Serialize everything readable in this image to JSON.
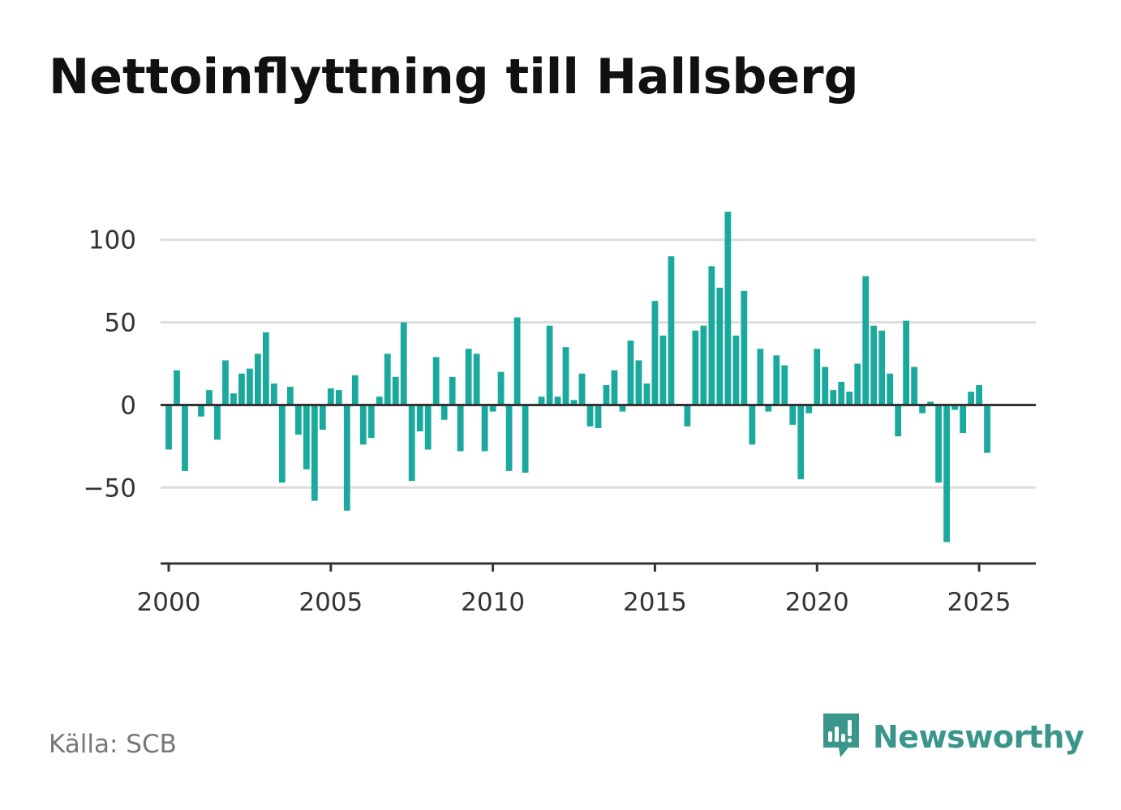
{
  "header": {
    "title": "Nettoinflyttning till Hallsberg"
  },
  "footer": {
    "source": "Källa: SCB",
    "brand": "Newsworthy",
    "brand_icon": "newsworthy-logo-icon"
  },
  "colors": {
    "bar": "#1aa99d",
    "grid": "#dddddd",
    "axis": "#333333",
    "brand": "#3a968a"
  },
  "chart_data": {
    "type": "bar",
    "title": "Nettoinflyttning till Hallsberg",
    "xlabel": "",
    "ylabel": "",
    "frequency": "quarterly",
    "x_start": 2000.0,
    "x_step": 0.25,
    "xlim": [
      1999.75,
      2026.75
    ],
    "ylim": [
      -96,
      120
    ],
    "yticks": [
      -50,
      0,
      50,
      100
    ],
    "ytick_labels": [
      "−50",
      "0",
      "50",
      "100"
    ],
    "xticks": [
      2000,
      2005,
      2010,
      2015,
      2020,
      2025
    ],
    "xtick_labels": [
      "2000",
      "2005",
      "2010",
      "2015",
      "2020",
      "2025"
    ],
    "grid": "horizontal",
    "values": [
      -27,
      21,
      -40,
      0,
      -7,
      9,
      -21,
      27,
      7,
      19,
      22,
      31,
      44,
      13,
      -47,
      11,
      -18,
      -39,
      -58,
      -15,
      10,
      9,
      -64,
      18,
      -24,
      -20,
      5,
      31,
      17,
      50,
      -46,
      -16,
      -27,
      29,
      -9,
      17,
      -28,
      34,
      31,
      -28,
      -4,
      20,
      -40,
      53,
      -41,
      0,
      5,
      48,
      5,
      35,
      3,
      19,
      -13,
      -14,
      12,
      21,
      -4,
      39,
      27,
      13,
      63,
      42,
      90,
      0,
      -13,
      45,
      48,
      84,
      71,
      117,
      42,
      69,
      -24,
      34,
      -4,
      30,
      24,
      -12,
      -45,
      -5,
      34,
      23,
      9,
      14,
      8,
      25,
      78,
      48,
      45,
      19,
      -19,
      51,
      23,
      -5,
      2,
      -47,
      -83,
      -3,
      -17,
      8,
      12,
      -29
    ]
  }
}
